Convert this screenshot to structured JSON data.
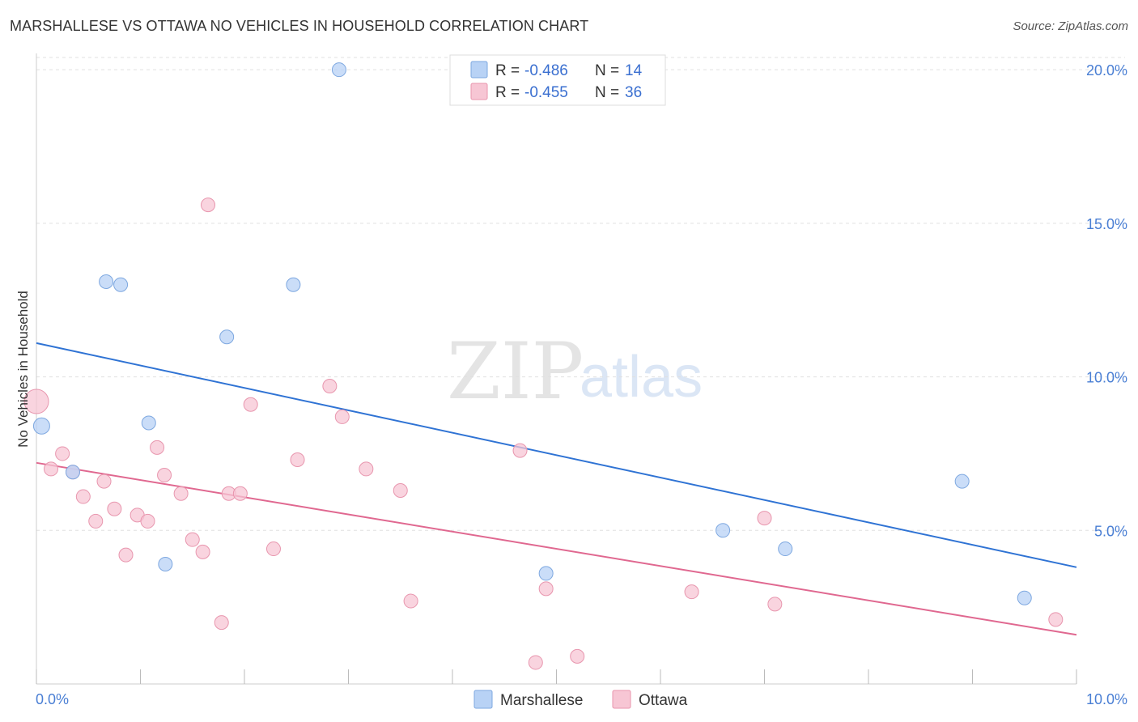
{
  "title": "MARSHALLESE VS OTTAWA NO VEHICLES IN HOUSEHOLD CORRELATION CHART",
  "source": "Source: ZipAtlas.com",
  "watermark": {
    "part1": "ZIP",
    "part2": "atlas"
  },
  "colors": {
    "marshallese_fill": "#b8d2f5",
    "marshallese_stroke": "#7ea8e0",
    "marshallese_line": "#2f73d4",
    "ottawa_fill": "#f7c6d4",
    "ottawa_stroke": "#e896ae",
    "ottawa_line": "#e06890",
    "tick_text": "#4a7fd4",
    "grid": "#e0e0e0"
  },
  "legend": {
    "rows": [
      {
        "r_label": "R = ",
        "r_value": "-0.486",
        "n_label": "N = ",
        "n_value": "14"
      },
      {
        "r_label": "R = ",
        "r_value": "-0.455",
        "n_label": "N = ",
        "n_value": "36"
      }
    ]
  },
  "chart_data": {
    "type": "scatter",
    "title": "MARSHALLESE VS OTTAWA NO VEHICLES IN HOUSEHOLD CORRELATION CHART",
    "xlabel": "",
    "ylabel": "No Vehicles in Household",
    "xlim": [
      0,
      10
    ],
    "ylim": [
      0,
      20.4
    ],
    "x_tick_labels": [
      "0.0%",
      "10.0%"
    ],
    "y_ticks": [
      5,
      10,
      15,
      20
    ],
    "y_tick_labels": [
      "5.0%",
      "10.0%",
      "15.0%",
      "20.0%"
    ],
    "grid": true,
    "legend_position": "top-center",
    "series": [
      {
        "name": "Marshallese",
        "points": [
          [
            0.05,
            8.4
          ],
          [
            0.35,
            6.9
          ],
          [
            0.67,
            13.1
          ],
          [
            0.81,
            13.0
          ],
          [
            1.08,
            8.5
          ],
          [
            1.24,
            3.9
          ],
          [
            1.83,
            11.3
          ],
          [
            2.47,
            13.0
          ],
          [
            2.91,
            20.0
          ],
          [
            4.9,
            3.6
          ],
          [
            6.6,
            5.0
          ],
          [
            7.2,
            4.4
          ],
          [
            8.9,
            6.6
          ],
          [
            9.5,
            2.8
          ]
        ],
        "trend": {
          "x": [
            0,
            10
          ],
          "y": [
            11.1,
            3.8
          ]
        }
      },
      {
        "name": "Ottawa",
        "points": [
          [
            0.0,
            9.2
          ],
          [
            0.14,
            7.0
          ],
          [
            0.25,
            7.5
          ],
          [
            0.35,
            6.9
          ],
          [
            0.45,
            6.1
          ],
          [
            0.57,
            5.3
          ],
          [
            0.65,
            6.6
          ],
          [
            0.75,
            5.7
          ],
          [
            0.86,
            4.2
          ],
          [
            0.97,
            5.5
          ],
          [
            1.07,
            5.3
          ],
          [
            1.16,
            7.7
          ],
          [
            1.23,
            6.8
          ],
          [
            1.39,
            6.2
          ],
          [
            1.5,
            4.7
          ],
          [
            1.6,
            4.3
          ],
          [
            1.65,
            15.6
          ],
          [
            1.78,
            2.0
          ],
          [
            1.85,
            6.2
          ],
          [
            1.96,
            6.2
          ],
          [
            2.06,
            9.1
          ],
          [
            2.28,
            4.4
          ],
          [
            2.51,
            7.3
          ],
          [
            2.82,
            9.7
          ],
          [
            2.94,
            8.7
          ],
          [
            3.17,
            7.0
          ],
          [
            3.5,
            6.3
          ],
          [
            3.6,
            2.7
          ],
          [
            4.65,
            7.6
          ],
          [
            4.9,
            3.1
          ],
          [
            4.8,
            0.7
          ],
          [
            5.2,
            0.9
          ],
          [
            6.3,
            3.0
          ],
          [
            7.0,
            5.4
          ],
          [
            7.1,
            2.6
          ],
          [
            9.8,
            2.1
          ]
        ],
        "trend": {
          "x": [
            0,
            10
          ],
          "y": [
            7.2,
            1.6
          ]
        }
      }
    ]
  }
}
